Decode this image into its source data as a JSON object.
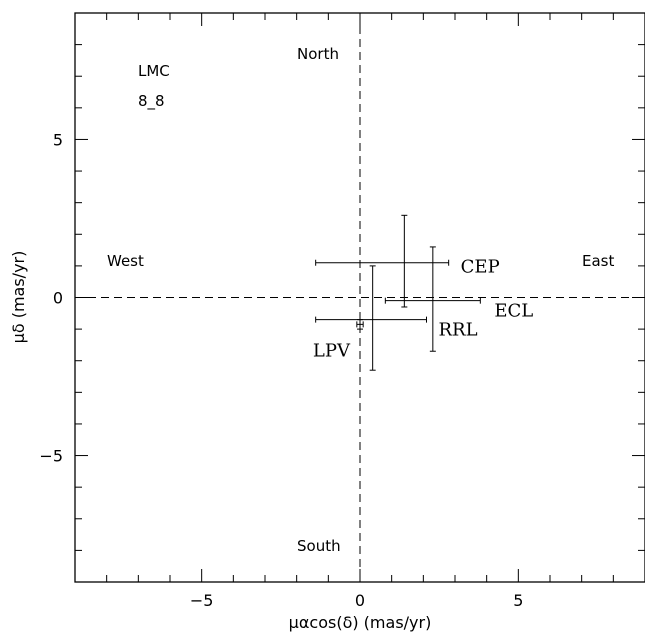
{
  "chart_data": {
    "type": "scatter",
    "xlabel": "μαcos(δ) (mas/yr)",
    "ylabel": "μδ (mas/yr)",
    "xlim": [
      -9,
      9
    ],
    "ylim": [
      -9,
      9
    ],
    "x_ticks": [
      -5,
      0,
      5
    ],
    "y_ticks": [
      -5,
      0,
      5
    ],
    "x_tick_labels": [
      "−5",
      "0",
      "5"
    ],
    "y_tick_labels": [
      "−5",
      "0",
      "5"
    ],
    "grid": false,
    "reference_lines": [
      {
        "axis": "x",
        "value": 0,
        "style": "dashed"
      },
      {
        "axis": "y",
        "value": 0,
        "style": "dashed"
      }
    ],
    "annotations": {
      "galaxy": "LMC",
      "field": "8_8",
      "north": "North",
      "south": "South",
      "west": "West",
      "east": "East"
    },
    "points": [
      {
        "label": "CEP",
        "x": 1.4,
        "y": 1.1,
        "xerr": [
          2.8,
          1.4
        ],
        "yerr": [
          1.4,
          1.5
        ]
      },
      {
        "label": "ECL",
        "x": 2.3,
        "y": -0.1,
        "xerr": [
          1.5,
          1.5
        ],
        "yerr": [
          1.6,
          1.7
        ]
      },
      {
        "label": "RRL",
        "x": 0.4,
        "y": -0.7,
        "xerr": [
          1.8,
          1.7
        ],
        "yerr": [
          1.6,
          1.7
        ]
      },
      {
        "label": "LPV",
        "x": 0.0,
        "y": -0.85,
        "xerr": [
          0.1,
          0.1
        ],
        "yerr": [
          0.15,
          0.15
        ]
      }
    ]
  }
}
